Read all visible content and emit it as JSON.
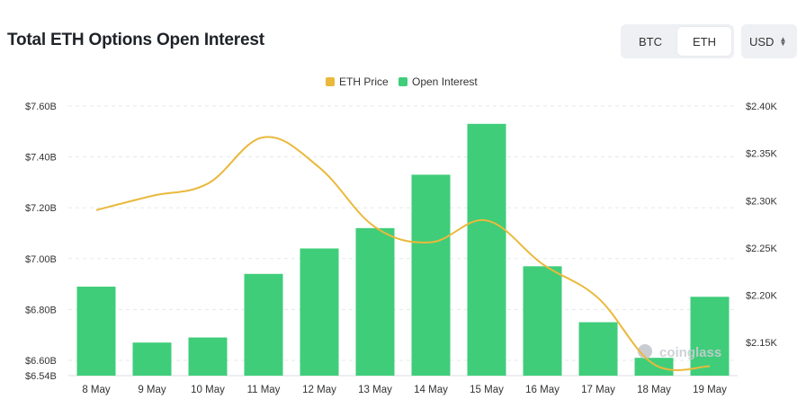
{
  "header": {
    "title": "Total ETH Options Open Interest",
    "asset_options": [
      {
        "label": "BTC",
        "active": false
      },
      {
        "label": "ETH",
        "active": true
      }
    ],
    "currency": "USD"
  },
  "watermark": "coinglass",
  "chart_data": {
    "type": "bar",
    "title": "Total ETH Options Open Interest",
    "categories": [
      "8 May",
      "9 May",
      "10 May",
      "11 May",
      "12 May",
      "13 May",
      "14 May",
      "15 May",
      "16 May",
      "17 May",
      "18 May",
      "19 May"
    ],
    "legend": {
      "placement": "top-center"
    },
    "series": [
      {
        "name": "Open Interest",
        "type": "bar",
        "axis": "left",
        "color": "#3fcd7a",
        "values": [
          6.89,
          6.67,
          6.69,
          6.94,
          7.04,
          7.12,
          7.33,
          7.53,
          6.97,
          6.75,
          6.61,
          6.85
        ]
      },
      {
        "name": "ETH Price",
        "type": "line",
        "axis": "right",
        "color": "#eab93c",
        "smooth": true,
        "values": [
          2290,
          2305,
          2318,
          2367,
          2335,
          2272,
          2256,
          2279,
          2233,
          2197,
          2127,
          2125
        ]
      }
    ],
    "y_left": {
      "min": 6.54,
      "max": 7.6,
      "ticks": [
        6.54,
        6.6,
        6.8,
        7.0,
        7.2,
        7.4,
        7.6
      ],
      "tick_labels": [
        "$6.54B",
        "$6.60B",
        "$6.80B",
        "$7.00B",
        "$7.20B",
        "$7.40B",
        "$7.60B"
      ]
    },
    "y_right": {
      "min": 2115,
      "max": 2400,
      "ticks": [
        2150,
        2200,
        2250,
        2300,
        2350,
        2400
      ],
      "tick_labels": [
        "$2.15K",
        "$2.20K",
        "$2.25K",
        "$2.30K",
        "$2.35K",
        "$2.40K"
      ]
    },
    "grid": true
  }
}
